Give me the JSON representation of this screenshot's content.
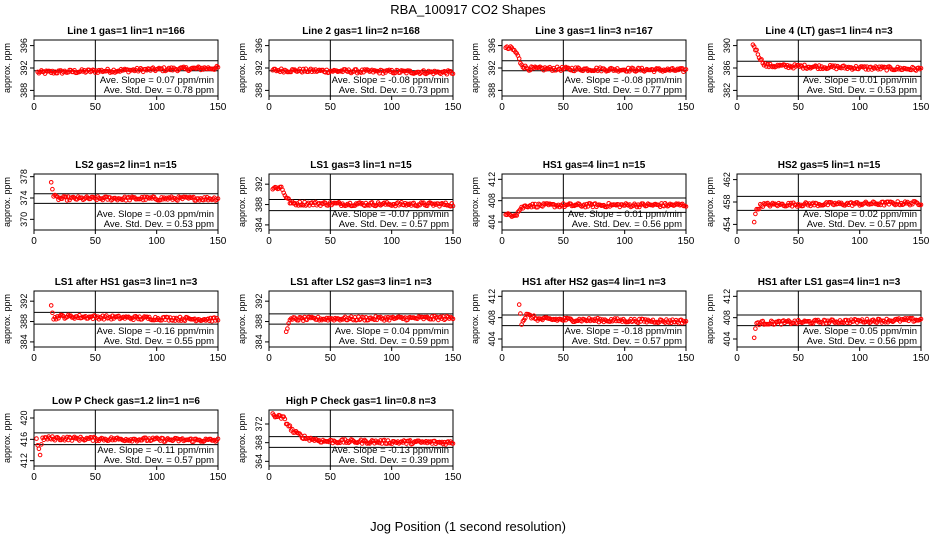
{
  "title": "RBA_100917  CO2 Shapes",
  "xlabel": "Jog Position (1 second resolution)",
  "ylabel": "approx. ppm",
  "colors": {
    "points": "#ff0000",
    "axes": "#000000"
  },
  "chart_data": [
    {
      "type": "scatter",
      "title": "Line 1 gas=1 lin=1 n=166",
      "xlim": [
        0,
        150
      ],
      "ylim": [
        387,
        397
      ],
      "yticks": [
        388,
        392,
        396
      ],
      "xticks": [
        0,
        50,
        100,
        150
      ],
      "vline": 50,
      "hlines": [
        391.5,
        393.3
      ],
      "slope_text": "Ave. Slope = 0.07 ppm/min",
      "std_text": "Ave. Std. Dev. = 0.78 ppm",
      "start": 3,
      "end": 150,
      "points": [
        [
          3,
          391.2
        ],
        [
          150,
          392.0
        ]
      ]
    },
    {
      "type": "scatter",
      "title": "Line 2 gas=1 lin=2 n=168",
      "xlim": [
        0,
        150
      ],
      "ylim": [
        387,
        397
      ],
      "yticks": [
        388,
        392,
        396
      ],
      "xticks": [
        0,
        50,
        100,
        150
      ],
      "vline": 50,
      "hlines": [
        391.5,
        393.3
      ],
      "slope_text": "Ave. Slope = -0.08 ppm/min",
      "std_text": "Ave. Std. Dev. = 0.73 ppm",
      "start": 3,
      "end": 150,
      "points": [
        [
          3,
          391.6
        ],
        [
          150,
          391.2
        ]
      ]
    },
    {
      "type": "scatter",
      "title": "Line 3 gas=1 lin=3 n=167",
      "xlim": [
        0,
        150
      ],
      "ylim": [
        387,
        397
      ],
      "yticks": [
        388,
        392,
        396
      ],
      "xticks": [
        0,
        50,
        100,
        150
      ],
      "vline": 50,
      "hlines": [
        391.5,
        393.3
      ],
      "slope_text": "Ave. Slope = -0.08 ppm/min",
      "std_text": "Ave. Std. Dev. = 0.77 ppm",
      "start": 3,
      "end": 150,
      "points": [
        [
          3,
          395.5
        ],
        [
          8,
          395.5
        ],
        [
          12,
          394.6
        ],
        [
          15,
          393.0
        ],
        [
          18,
          392.2
        ],
        [
          22,
          391.9
        ],
        [
          150,
          391.6
        ]
      ]
    },
    {
      "type": "scatter",
      "title": "Line 4 (LT) gas=1 lin=4 n=3",
      "xlim": [
        0,
        150
      ],
      "ylim": [
        381,
        391
      ],
      "yticks": [
        382,
        386,
        390
      ],
      "xticks": [
        0,
        50,
        100,
        150
      ],
      "vline": 50,
      "hlines": [
        384.5,
        387.2
      ],
      "slope_text": "Ave. Slope = 0.01 ppm/min",
      "std_text": "Ave. Std. Dev. = 0.53 ppm",
      "start": 13,
      "end": 150,
      "points": [
        [
          13,
          390.3
        ],
        [
          16,
          389.0
        ],
        [
          20,
          387.3
        ],
        [
          24,
          386.4
        ],
        [
          150,
          385.8
        ]
      ]
    },
    {
      "type": "scatter",
      "title": "LS2 gas=2 lin=1 n=15",
      "xlim": [
        0,
        150
      ],
      "ylim": [
        368,
        378.5
      ],
      "yticks": [
        370,
        374,
        378
      ],
      "xticks": [
        0,
        50,
        100,
        150
      ],
      "vline": 50,
      "hlines": [
        373.0,
        374.8
      ],
      "slope_text": "Ave. Slope = -0.03 ppm/min",
      "std_text": "Ave. Std. Dev. = 0.53 ppm",
      "start": 14,
      "end": 150,
      "points": [
        [
          14,
          377.3
        ],
        [
          16,
          374.3
        ],
        [
          20,
          373.9
        ],
        [
          150,
          373.9
        ]
      ]
    },
    {
      "type": "scatter",
      "title": "LS1 gas=3 lin=1 n=15",
      "xlim": [
        0,
        150
      ],
      "ylim": [
        383,
        394
      ],
      "yticks": [
        384,
        388,
        392
      ],
      "xticks": [
        0,
        50,
        100,
        150
      ],
      "vline": 50,
      "hlines": [
        386.8,
        389.0
      ],
      "slope_text": "Ave. Slope = -0.07 ppm/min",
      "std_text": "Ave. Std. Dev. = 0.57 ppm",
      "start": 3,
      "end": 150,
      "points": [
        [
          3,
          391.2
        ],
        [
          10,
          391.4
        ],
        [
          14,
          389.5
        ],
        [
          18,
          388.2
        ],
        [
          150,
          388.0
        ]
      ]
    },
    {
      "type": "scatter",
      "title": "HS1 gas=4 lin=1 n=15",
      "xlim": [
        0,
        150
      ],
      "ylim": [
        402.5,
        413
      ],
      "yticks": [
        404,
        408,
        412
      ],
      "xticks": [
        0,
        50,
        100,
        150
      ],
      "vline": 50,
      "hlines": [
        405.8,
        408.5
      ],
      "slope_text": "Ave. Slope = 0.01 ppm/min",
      "std_text": "Ave. Std. Dev. = 0.56 ppm",
      "start": 3,
      "end": 150,
      "points": [
        [
          3,
          405.2
        ],
        [
          12,
          405.5
        ],
        [
          15,
          406.5
        ],
        [
          20,
          407.1
        ],
        [
          150,
          407.2
        ]
      ]
    },
    {
      "type": "scatter",
      "title": "HS2 gas=5 lin=1 n=15",
      "xlim": [
        0,
        150
      ],
      "ylim": [
        453,
        463
      ],
      "yticks": [
        454,
        458,
        462
      ],
      "xticks": [
        0,
        50,
        100,
        150
      ],
      "vline": 50,
      "hlines": [
        456.5,
        459.0
      ],
      "slope_text": "Ave. Slope = 0.02 ppm/min",
      "std_text": "Ave. Std. Dev. = 0.57 ppm",
      "start": 14,
      "end": 150,
      "points": [
        [
          14,
          454.5
        ],
        [
          16,
          456.7
        ],
        [
          20,
          457.5
        ],
        [
          150,
          457.8
        ]
      ]
    },
    {
      "type": "scatter",
      "title": "LS1 after HS1 gas=3 lin=1 n=3",
      "xlim": [
        0,
        150
      ],
      "ylim": [
        383,
        394
      ],
      "yticks": [
        384,
        388,
        392
      ],
      "xticks": [
        0,
        50,
        100,
        150
      ],
      "vline": 50,
      "hlines": [
        387.5,
        389.8
      ],
      "slope_text": "Ave. Slope = -0.16 ppm/min",
      "std_text": "Ave. Std. Dev. = 0.55 ppm",
      "start": 14,
      "end": 150,
      "points": [
        [
          14,
          391.5
        ],
        [
          16,
          388.5
        ],
        [
          20,
          389.0
        ],
        [
          150,
          388.4
        ]
      ]
    },
    {
      "type": "scatter",
      "title": "LS1 after LS2 gas=3 lin=1 n=3",
      "xlim": [
        0,
        150
      ],
      "ylim": [
        383,
        394
      ],
      "yticks": [
        384,
        388,
        392
      ],
      "xticks": [
        0,
        50,
        100,
        150
      ],
      "vline": 50,
      "hlines": [
        387.5,
        389.5
      ],
      "slope_text": "Ave. Slope = 0.04 ppm/min",
      "std_text": "Ave. Std. Dev. = 0.59 ppm",
      "start": 14,
      "end": 150,
      "points": [
        [
          14,
          385.8
        ],
        [
          16,
          388.0
        ],
        [
          20,
          388.5
        ],
        [
          150,
          388.7
        ]
      ]
    },
    {
      "type": "scatter",
      "title": "HS1 after HS2 gas=4 lin=1 n=3",
      "xlim": [
        0,
        150
      ],
      "ylim": [
        402.5,
        413
      ],
      "yticks": [
        404,
        408,
        412
      ],
      "xticks": [
        0,
        50,
        100,
        150
      ],
      "vline": 50,
      "hlines": [
        406.5,
        408.5
      ],
      "slope_text": "Ave. Slope = -0.18 ppm/min",
      "std_text": "Ave. Std. Dev. = 0.57 ppm",
      "start": 14,
      "end": 150,
      "points": [
        [
          14,
          410.8
        ],
        [
          16,
          407.0
        ],
        [
          20,
          408.5
        ],
        [
          30,
          407.7
        ],
        [
          150,
          407.3
        ]
      ]
    },
    {
      "type": "scatter",
      "title": "HS1 after LS1 gas=4 lin=1 n=3",
      "xlim": [
        0,
        150
      ],
      "ylim": [
        402.5,
        413
      ],
      "yticks": [
        404,
        408,
        412
      ],
      "xticks": [
        0,
        50,
        100,
        150
      ],
      "vline": 50,
      "hlines": [
        406.5,
        408.5
      ],
      "slope_text": "Ave. Slope = 0.05 ppm/min",
      "std_text": "Ave. Std. Dev. = 0.56 ppm",
      "start": 14,
      "end": 150,
      "points": [
        [
          14,
          404.3
        ],
        [
          16,
          407.0
        ],
        [
          150,
          407.6
        ]
      ]
    },
    {
      "type": "scatter",
      "title": "Low P Check gas=1.2 lin=1 n=6",
      "xlim": [
        0,
        150
      ],
      "ylim": [
        411,
        421.5
      ],
      "yticks": [
        412,
        416,
        420
      ],
      "xticks": [
        0,
        50,
        100,
        150
      ],
      "vline": 50,
      "hlines": [
        415.0,
        417.2
      ],
      "slope_text": "Ave. Slope = -0.11 ppm/min",
      "std_text": "Ave. Std. Dev. = 0.57 ppm",
      "start": 2,
      "end": 150,
      "points": [
        [
          2,
          416.3
        ],
        [
          4,
          414.0
        ],
        [
          5,
          413.2
        ],
        [
          7,
          416.2
        ],
        [
          150,
          415.8
        ]
      ]
    },
    {
      "type": "scatter",
      "title": "High P Check gas=1 lin=0.8 n=3",
      "xlim": [
        0,
        150
      ],
      "ylim": [
        363,
        375
      ],
      "yticks": [
        364,
        368,
        372
      ],
      "xticks": [
        0,
        50,
        100,
        150
      ],
      "vline": 50,
      "hlines": [
        367.0,
        369.3
      ],
      "slope_text": "Ave. Slope = -0.13 ppm/min",
      "std_text": "Ave. Std. Dev. = 0.39 ppm",
      "start": 3,
      "end": 150,
      "points": [
        [
          3,
          374.0
        ],
        [
          12,
          373.2
        ],
        [
          15,
          372.0
        ],
        [
          20,
          370.3
        ],
        [
          30,
          369.0
        ],
        [
          45,
          368.3
        ],
        [
          150,
          368.0
        ]
      ]
    }
  ]
}
